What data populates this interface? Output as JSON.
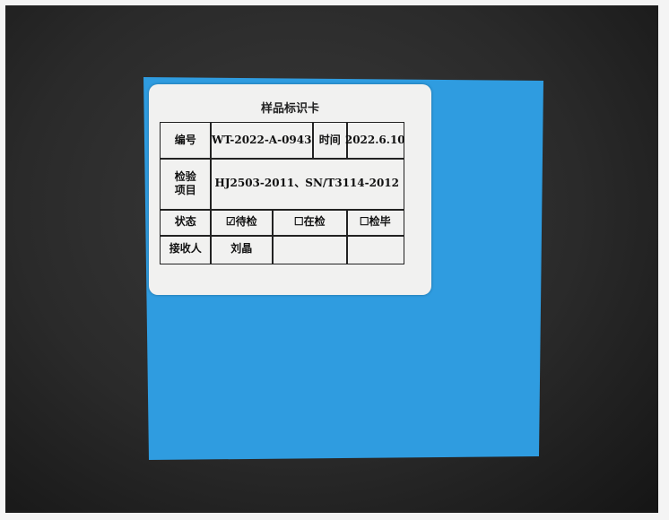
{
  "card": {
    "title": "样品标识卡",
    "rows": [
      [
        "编号",
        "WT-2022-A-0943",
        "时间",
        "2022.6.10"
      ],
      [
        "检验\n项目",
        "HJ2503-2011、SN/T3114-2012"
      ],
      [
        "状态",
        "☑待检",
        "☐在检",
        "☐检毕"
      ],
      [
        "接收人",
        "刘晶"
      ]
    ]
  }
}
